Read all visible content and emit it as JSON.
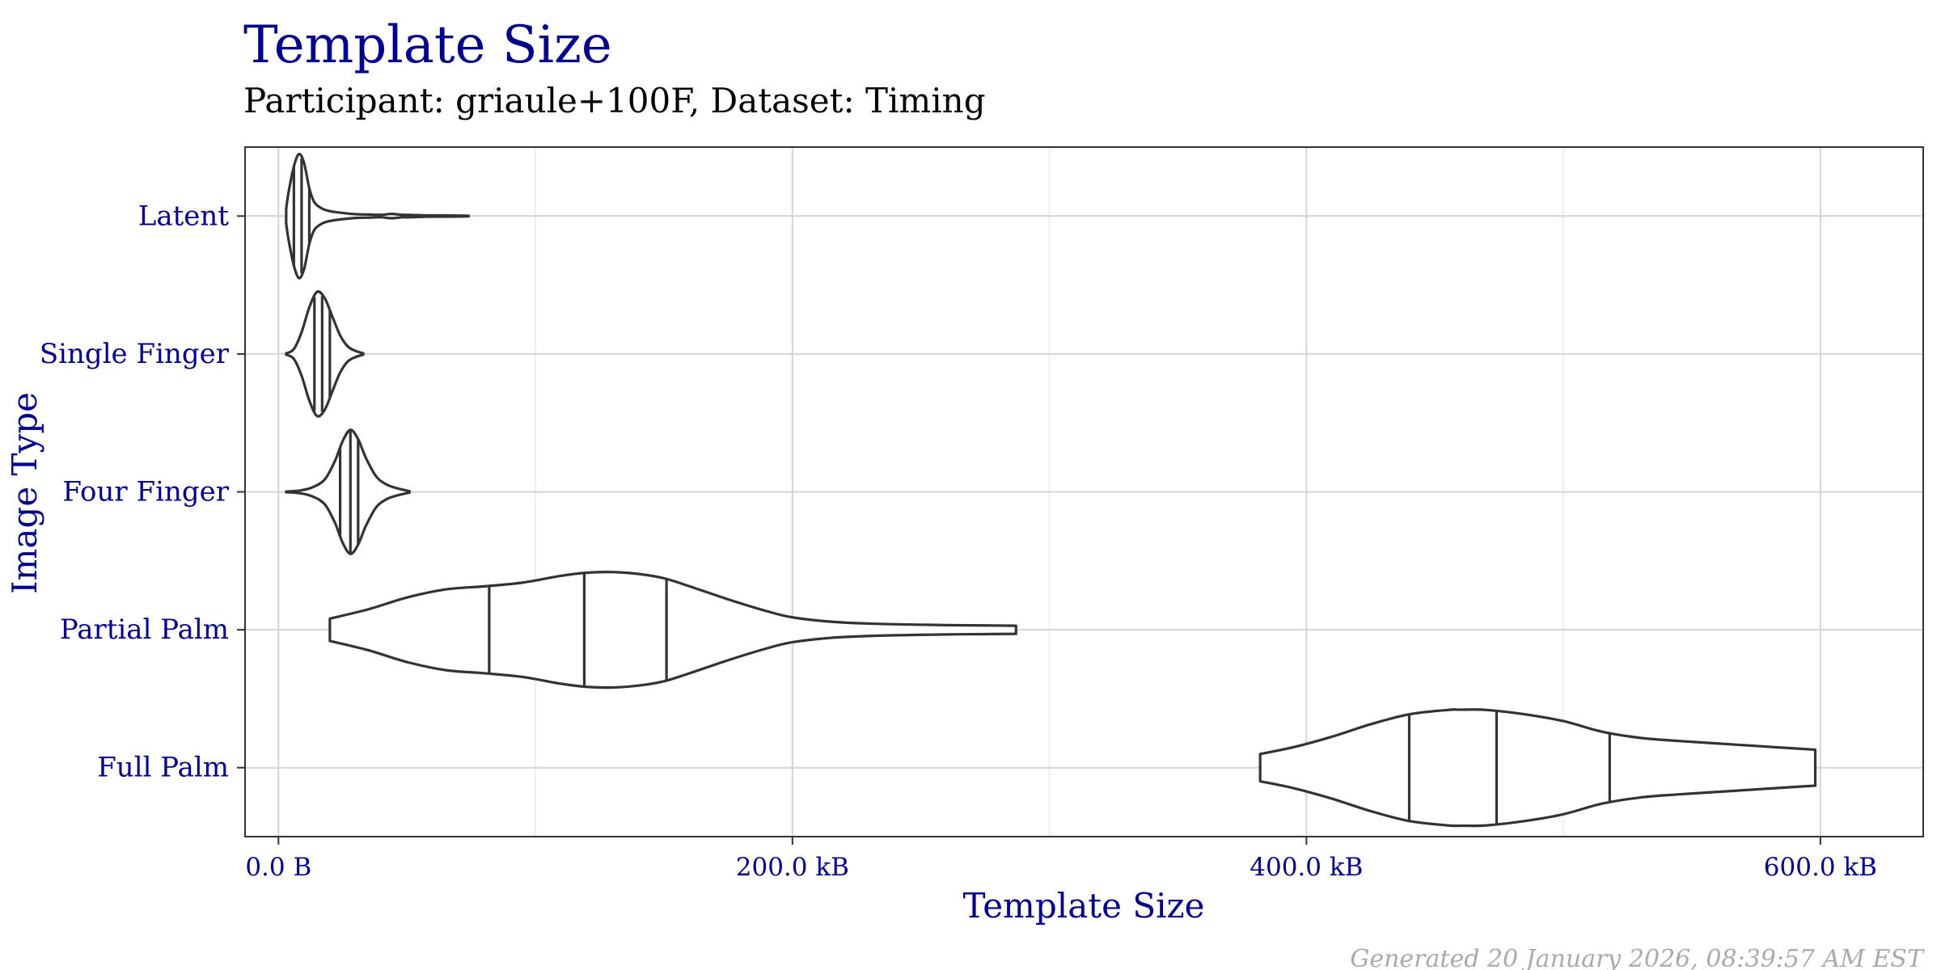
{
  "chart_data": {
    "type": "violin",
    "title": "Template Size",
    "subtitle": "Participant: griaule+100F, Dataset: Timing",
    "xlabel": "Template Size",
    "ylabel": "Image Type",
    "caption": "Generated 20 January 2026, 08:39:57 AM EST",
    "xlim": [
      -13,
      640
    ],
    "x_ticks": [
      {
        "value": 0,
        "label": "0.0 B"
      },
      {
        "value": 200,
        "label": "200.0 kB"
      },
      {
        "value": 400,
        "label": "400.0 kB"
      },
      {
        "value": 600,
        "label": "600.0 kB"
      }
    ],
    "x_minor_ticks": [
      100,
      300,
      500
    ],
    "grid": true,
    "colors": {
      "title": "#00008B",
      "axis_text": "#00008B",
      "violin_stroke": "#333333",
      "grid": "#d4d4d4",
      "caption": "#aaaaaa"
    },
    "categories": [
      "Latent",
      "Single Finger",
      "Four Finger",
      "Partial Palm",
      "Full Palm"
    ],
    "violins": [
      {
        "category": "Latent",
        "quantiles": [
          6,
          9,
          12
        ],
        "profile": [
          [
            3,
            0.12
          ],
          [
            4,
            0.4
          ],
          [
            6,
            0.8
          ],
          [
            8,
            1.0
          ],
          [
            10,
            0.85
          ],
          [
            12,
            0.45
          ],
          [
            14,
            0.22
          ],
          [
            17,
            0.12
          ],
          [
            20,
            0.08
          ],
          [
            25,
            0.05
          ],
          [
            30,
            0.03
          ],
          [
            35,
            0.025
          ],
          [
            40,
            0.02
          ],
          [
            44,
            0.035
          ],
          [
            48,
            0.02
          ],
          [
            52,
            0.018
          ],
          [
            56,
            0.012
          ],
          [
            60,
            0.01
          ],
          [
            65,
            0.01
          ],
          [
            70,
            0.008
          ],
          [
            74,
            0.005
          ]
        ]
      },
      {
        "category": "Single Finger",
        "quantiles": [
          14,
          17,
          20
        ],
        "profile": [
          [
            3,
            0.01
          ],
          [
            6,
            0.08
          ],
          [
            9,
            0.35
          ],
          [
            12,
            0.75
          ],
          [
            15,
            1.0
          ],
          [
            18,
            0.9
          ],
          [
            21,
            0.6
          ],
          [
            24,
            0.3
          ],
          [
            27,
            0.12
          ],
          [
            30,
            0.05
          ],
          [
            33,
            0.01
          ]
        ]
      },
      {
        "category": "Four Finger",
        "quantiles": [
          24,
          28,
          31
        ],
        "profile": [
          [
            3,
            0.005
          ],
          [
            8,
            0.02
          ],
          [
            13,
            0.07
          ],
          [
            18,
            0.2
          ],
          [
            22,
            0.5
          ],
          [
            25,
            0.82
          ],
          [
            28,
            1.0
          ],
          [
            31,
            0.85
          ],
          [
            34,
            0.55
          ],
          [
            38,
            0.25
          ],
          [
            42,
            0.12
          ],
          [
            46,
            0.06
          ],
          [
            50,
            0.02
          ],
          [
            51,
            0.01
          ]
        ]
      },
      {
        "category": "Partial Palm",
        "quantiles": [
          82,
          119,
          151
        ],
        "profile": [
          [
            20,
            0.18
          ],
          [
            35,
            0.33
          ],
          [
            50,
            0.52
          ],
          [
            65,
            0.65
          ],
          [
            80,
            0.7
          ],
          [
            95,
            0.76
          ],
          [
            110,
            0.87
          ],
          [
            120,
            0.92
          ],
          [
            130,
            0.93
          ],
          [
            140,
            0.9
          ],
          [
            150,
            0.83
          ],
          [
            160,
            0.7
          ],
          [
            175,
            0.49
          ],
          [
            190,
            0.3
          ],
          [
            200,
            0.2
          ],
          [
            215,
            0.13
          ],
          [
            230,
            0.1
          ],
          [
            245,
            0.085
          ],
          [
            260,
            0.075
          ],
          [
            275,
            0.07
          ],
          [
            287,
            0.065
          ]
        ]
      },
      {
        "category": "Full Palm",
        "quantiles": [
          440,
          474,
          518
        ],
        "profile": [
          [
            382,
            0.22
          ],
          [
            395,
            0.33
          ],
          [
            410,
            0.5
          ],
          [
            425,
            0.7
          ],
          [
            440,
            0.86
          ],
          [
            455,
            0.93
          ],
          [
            460,
            0.935
          ],
          [
            470,
            0.93
          ],
          [
            485,
            0.86
          ],
          [
            500,
            0.75
          ],
          [
            515,
            0.58
          ],
          [
            530,
            0.48
          ],
          [
            545,
            0.43
          ],
          [
            560,
            0.39
          ],
          [
            575,
            0.35
          ],
          [
            590,
            0.31
          ],
          [
            598,
            0.29
          ]
        ]
      }
    ]
  }
}
